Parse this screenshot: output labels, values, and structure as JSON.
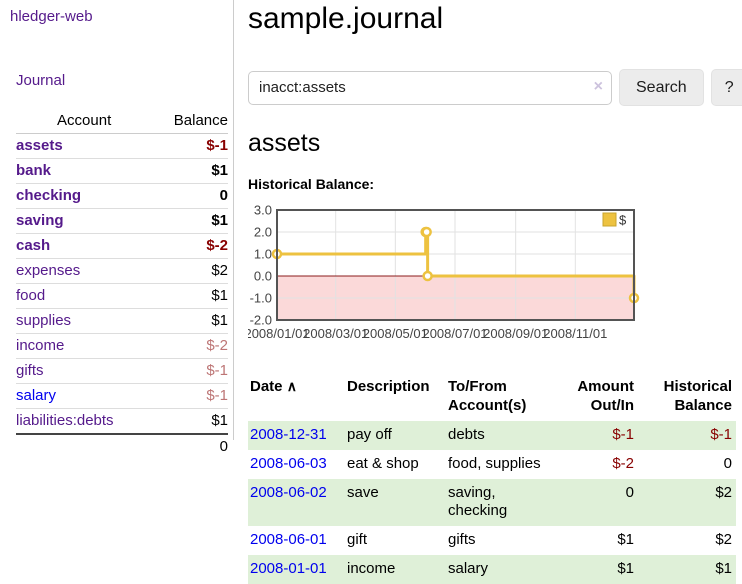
{
  "app": {
    "title": "hledger-web"
  },
  "sidebar": {
    "journal_link": "Journal",
    "headers": {
      "account": "Account",
      "balance": "Balance"
    },
    "accounts": [
      {
        "name": "assets",
        "balance": "$-1"
      },
      {
        "name": "bank",
        "balance": "$1"
      },
      {
        "name": "checking",
        "balance": "0"
      },
      {
        "name": "saving",
        "balance": "$1"
      },
      {
        "name": "cash",
        "balance": "$-2"
      },
      {
        "name": "expenses",
        "balance": "$2"
      },
      {
        "name": "food",
        "balance": "$1"
      },
      {
        "name": "supplies",
        "balance": "$1"
      },
      {
        "name": "income",
        "balance": "$-2"
      },
      {
        "name": "gifts",
        "balance": "$-1"
      },
      {
        "name": "salary",
        "balance": "$-1"
      },
      {
        "name": "liabilities:debts",
        "balance": "$1"
      }
    ],
    "total": "0"
  },
  "header": {
    "title": "sample.journal"
  },
  "search": {
    "value": "inacct:assets",
    "clear_icon": "×",
    "search_button": "Search",
    "help_button": "?"
  },
  "account_page": {
    "title": "assets",
    "chart_label": "Historical Balance:"
  },
  "chart_data": {
    "type": "line",
    "step": true,
    "title": "Historical Balance",
    "legend": "$",
    "series": [
      {
        "name": "$",
        "color": "#edc240",
        "points": [
          [
            "2008-01-01",
            1
          ],
          [
            "2008-06-01",
            2
          ],
          [
            "2008-06-02",
            2
          ],
          [
            "2008-06-03",
            0
          ],
          [
            "2008-12-31",
            -1
          ]
        ]
      }
    ],
    "x_range": [
      "2008-01-01",
      "2008-12-31"
    ],
    "x_ticks": [
      "2008/01/01",
      "2008/03/01",
      "2008/05/01",
      "2008/07/01",
      "2008/09/01",
      "2008/11/01"
    ],
    "y_ticks": [
      3.0,
      2.0,
      1.0,
      0.0,
      -1.0,
      -2.0
    ],
    "ylim": [
      -2,
      3
    ],
    "grid": true,
    "legend_position": "top-right",
    "colors": {
      "negative_region": "#fbd9d9",
      "zero_line": "#8b1c1c",
      "plot_border": "#545454",
      "grid_line": "#e2e2e2",
      "axis_text": "#444444"
    }
  },
  "transactions": {
    "sort_icon": "∧",
    "headers": {
      "date": "Date",
      "description": "Description",
      "accounts": "To/From\nAccount(s)",
      "amount": "Amount\nOut/In",
      "balance": "Historical\nBalance"
    },
    "rows": [
      {
        "date": "2008-12-31",
        "description": "pay off",
        "accounts": "debts",
        "amount": "$-1",
        "balance": "$-1"
      },
      {
        "date": "2008-06-03",
        "description": "eat & shop",
        "accounts": "food, supplies",
        "amount": "$-2",
        "balance": "0"
      },
      {
        "date": "2008-06-02",
        "description": "save",
        "accounts": "saving, checking",
        "amount": "0",
        "balance": "$2"
      },
      {
        "date": "2008-06-01",
        "description": "gift",
        "accounts": "gifts",
        "amount": "$1",
        "balance": "$2"
      },
      {
        "date": "2008-01-01",
        "description": "income",
        "accounts": "salary",
        "amount": "$1",
        "balance": "$1"
      }
    ]
  }
}
